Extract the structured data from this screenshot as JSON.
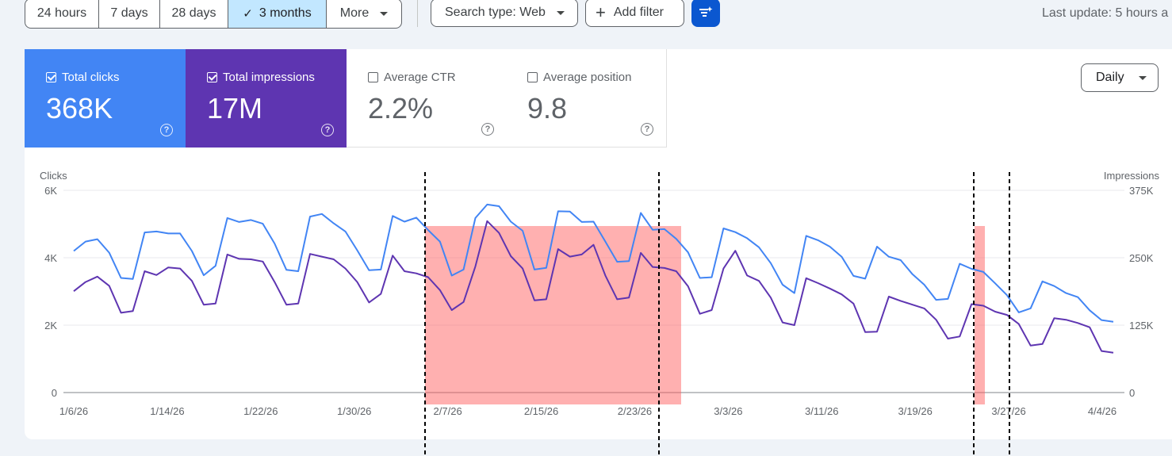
{
  "toolbar": {
    "ranges": [
      "24 hours",
      "7 days",
      "28 days",
      "3 months",
      "More"
    ],
    "active_range": "3 months",
    "search_type": "Search type: Web",
    "add_filter": "Add filter",
    "last_update": "Last update: 5 hours a"
  },
  "metrics": {
    "clicks": {
      "label": "Total clicks",
      "value": "368K",
      "checked": true,
      "color": "#4285f4"
    },
    "impressions": {
      "label": "Total impressions",
      "value": "17M",
      "checked": true,
      "color": "#5e35b1"
    },
    "ctr": {
      "label": "Average CTR",
      "value": "2.2%",
      "checked": false
    },
    "position": {
      "label": "Average position",
      "value": "9.8",
      "checked": false
    }
  },
  "granularity": "Daily",
  "chart_data": {
    "type": "line",
    "left_axis": {
      "label": "Clicks",
      "ticks": [
        "0",
        "2K",
        "4K",
        "6K"
      ],
      "range": [
        0,
        6000
      ]
    },
    "right_axis": {
      "label": "Impressions",
      "ticks": [
        "0",
        "125K",
        "250K",
        "375K"
      ],
      "range": [
        0,
        375000
      ]
    },
    "x_tick_labels": [
      "1/6/26",
      "1/14/26",
      "1/22/26",
      "1/30/26",
      "2/7/26",
      "2/15/26",
      "2/23/26",
      "3/3/26",
      "3/11/26",
      "3/19/26",
      "3/27/26",
      "4/4/26"
    ],
    "x_range": [
      "1/6/26",
      "4/4/26"
    ],
    "grid": true,
    "series": [
      {
        "name": "Clicks",
        "axis": "left",
        "color": "#4285f4",
        "values": [
          4200,
          4480,
          4550,
          4150,
          3400,
          3370,
          4750,
          4780,
          4720,
          4720,
          4200,
          3480,
          3760,
          5180,
          5060,
          5120,
          5010,
          4420,
          3640,
          3600,
          5220,
          5300,
          5020,
          4780,
          4220,
          3630,
          3650,
          5240,
          5070,
          5190,
          4820,
          4480,
          3470,
          3650,
          5180,
          5580,
          5530,
          5070,
          4800,
          3650,
          3700,
          5380,
          5370,
          5060,
          5070,
          4480,
          3880,
          3900,
          5330,
          4830,
          4850,
          4560,
          4160,
          3400,
          3420,
          4870,
          4760,
          4580,
          4310,
          3840,
          3200,
          2950,
          4650,
          4520,
          4330,
          4030,
          3460,
          3380,
          4330,
          4030,
          3930,
          3510,
          3200,
          2750,
          2780,
          3820,
          3670,
          3580,
          3240,
          2890,
          2380,
          2500,
          3300,
          3160,
          2950,
          2830,
          2440,
          2150,
          2100
        ]
      },
      {
        "name": "Impressions",
        "axis": "right",
        "color": "#5e35b1",
        "values": [
          188000,
          205000,
          215000,
          198000,
          148000,
          151000,
          225000,
          218000,
          232000,
          230000,
          207000,
          163000,
          165000,
          256000,
          248000,
          247000,
          243000,
          205000,
          163000,
          165000,
          257000,
          252000,
          247000,
          230000,
          205000,
          167000,
          183000,
          254000,
          225000,
          221000,
          214000,
          190000,
          153000,
          168000,
          234000,
          318000,
          296000,
          253000,
          230000,
          171000,
          173000,
          266000,
          252000,
          256000,
          274000,
          217000,
          173000,
          176000,
          259000,
          233000,
          231000,
          225000,
          197000,
          146000,
          153000,
          230000,
          263000,
          217000,
          207000,
          176000,
          130000,
          125000,
          212000,
          203000,
          193000,
          182000,
          165000,
          112000,
          113000,
          178000,
          170000,
          163000,
          156000,
          135000,
          100000,
          104000,
          164000,
          161000,
          150000,
          144000,
          127000,
          87000,
          90000,
          138000,
          135000,
          129000,
          121000,
          77000,
          74000
        ]
      }
    ]
  }
}
